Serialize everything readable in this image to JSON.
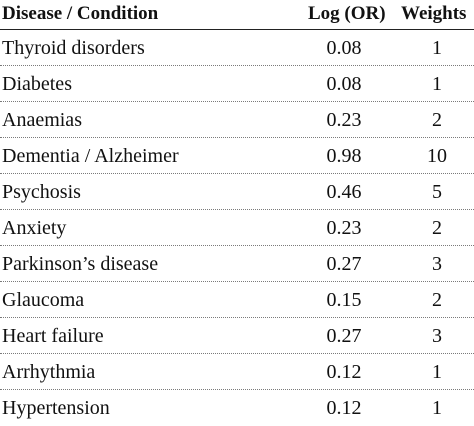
{
  "table": {
    "headers": {
      "disease": "Disease / Condition",
      "log_or": "Log (OR)",
      "weights": "Weights"
    },
    "rows": [
      {
        "disease": "Thyroid disorders",
        "log_or": "0.08",
        "weight": "1"
      },
      {
        "disease": "Diabetes",
        "log_or": "0.08",
        "weight": "1"
      },
      {
        "disease": "Anaemias",
        "log_or": "0.23",
        "weight": "2"
      },
      {
        "disease": "Dementia / Alzheimer",
        "log_or": "0.98",
        "weight": "10"
      },
      {
        "disease": "Psychosis",
        "log_or": "0.46",
        "weight": "5"
      },
      {
        "disease": "Anxiety",
        "log_or": "0.23",
        "weight": "2"
      },
      {
        "disease": "Parkinson’s disease",
        "log_or": "0.27",
        "weight": "3"
      },
      {
        "disease": "Glaucoma",
        "log_or": "0.15",
        "weight": "2"
      },
      {
        "disease": "Heart failure",
        "log_or": "0.27",
        "weight": "3"
      },
      {
        "disease": "Arrhythmia",
        "log_or": "0.12",
        "weight": "1"
      },
      {
        "disease": "Hypertension",
        "log_or": "0.12",
        "weight": "1"
      }
    ]
  }
}
